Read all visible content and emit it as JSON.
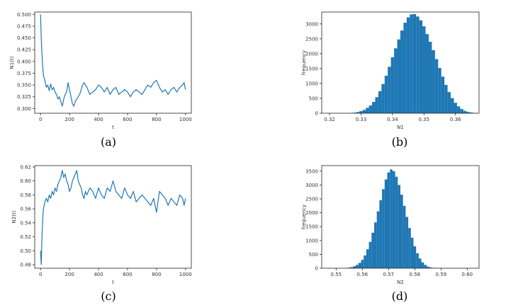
{
  "chart_data": [
    {
      "type": "line",
      "panel": "a",
      "caption": "(a)",
      "xlabel": "t",
      "ylabel": "N1(t)",
      "xlim": [
        -40,
        1040
      ],
      "ylim": [
        0.29,
        0.505
      ],
      "xticks": [
        "0",
        "200",
        "400",
        "600",
        "800",
        "1000"
      ],
      "yticks": [
        "0.300",
        "0.325",
        "0.350",
        "0.375",
        "0.400",
        "0.425",
        "0.450",
        "0.475",
        "0.500"
      ],
      "series": [
        {
          "color": "#1f77b4",
          "x": [
            0,
            5,
            10,
            15,
            20,
            30,
            40,
            50,
            60,
            70,
            80,
            90,
            100,
            110,
            120,
            130,
            140,
            150,
            160,
            170,
            180,
            190,
            200,
            210,
            220,
            230,
            240,
            250,
            260,
            270,
            280,
            290,
            300,
            320,
            340,
            360,
            380,
            400,
            420,
            440,
            460,
            480,
            500,
            520,
            540,
            560,
            580,
            600,
            620,
            640,
            660,
            680,
            700,
            720,
            740,
            760,
            780,
            800,
            820,
            840,
            860,
            880,
            900,
            920,
            940,
            960,
            980,
            990,
            1000
          ],
          "y": [
            0.5,
            0.45,
            0.415,
            0.39,
            0.37,
            0.36,
            0.345,
            0.35,
            0.338,
            0.352,
            0.34,
            0.345,
            0.335,
            0.33,
            0.32,
            0.325,
            0.315,
            0.305,
            0.32,
            0.33,
            0.335,
            0.355,
            0.34,
            0.325,
            0.31,
            0.305,
            0.315,
            0.32,
            0.325,
            0.33,
            0.34,
            0.35,
            0.355,
            0.345,
            0.33,
            0.335,
            0.34,
            0.35,
            0.345,
            0.335,
            0.345,
            0.33,
            0.34,
            0.345,
            0.33,
            0.335,
            0.34,
            0.335,
            0.325,
            0.335,
            0.34,
            0.335,
            0.33,
            0.34,
            0.35,
            0.345,
            0.355,
            0.36,
            0.345,
            0.335,
            0.34,
            0.33,
            0.34,
            0.345,
            0.335,
            0.345,
            0.35,
            0.355,
            0.34
          ]
        }
      ]
    },
    {
      "type": "bar",
      "panel": "b",
      "caption": "(b)",
      "xlabel": "N1",
      "ylabel": "frequency",
      "xlim": [
        0.3175,
        0.3675
      ],
      "ylim": [
        0,
        3400
      ],
      "xticks": [
        "0.32",
        "0.33",
        "0.34",
        "0.35",
        "0.36"
      ],
      "yticks": [
        "0",
        "500",
        "1000",
        "1500",
        "2000",
        "2500",
        "3000"
      ],
      "bins": {
        "start": 0.3265,
        "width": 0.001
      },
      "values": [
        10,
        20,
        40,
        70,
        110,
        180,
        260,
        380,
        540,
        740,
        980,
        1260,
        1560,
        1880,
        2180,
        2480,
        2780,
        3040,
        3220,
        3320,
        3330,
        3250,
        3120,
        2920,
        2660,
        2400,
        2120,
        1820,
        1520,
        1230,
        950,
        710,
        510,
        350,
        230,
        140,
        80,
        45,
        25,
        12
      ]
    },
    {
      "type": "line",
      "panel": "c",
      "caption": "(c)",
      "xlabel": "t",
      "ylabel": "N2(t)",
      "xlim": [
        -40,
        1040
      ],
      "ylim": [
        0.475,
        0.622
      ],
      "xticks": [
        "0",
        "200",
        "400",
        "600",
        "800",
        "1000"
      ],
      "yticks": [
        "0.48",
        "0.50",
        "0.52",
        "0.54",
        "0.56",
        "0.58",
        "0.60",
        "0.62"
      ],
      "series": [
        {
          "color": "#1f77b4",
          "x": [
            0,
            5,
            10,
            15,
            20,
            30,
            40,
            50,
            60,
            70,
            80,
            90,
            100,
            110,
            120,
            130,
            140,
            150,
            160,
            170,
            180,
            190,
            200,
            210,
            220,
            230,
            240,
            250,
            260,
            270,
            280,
            290,
            300,
            310,
            320,
            340,
            360,
            380,
            400,
            420,
            440,
            460,
            480,
            500,
            520,
            540,
            560,
            580,
            600,
            620,
            640,
            660,
            680,
            700,
            720,
            740,
            760,
            780,
            800,
            820,
            840,
            860,
            880,
            900,
            920,
            940,
            960,
            980,
            990,
            1000
          ],
          "y": [
            0.5,
            0.48,
            0.52,
            0.545,
            0.56,
            0.57,
            0.575,
            0.57,
            0.58,
            0.575,
            0.585,
            0.58,
            0.59,
            0.585,
            0.595,
            0.6,
            0.605,
            0.615,
            0.605,
            0.61,
            0.6,
            0.595,
            0.585,
            0.59,
            0.6,
            0.605,
            0.61,
            0.615,
            0.6,
            0.595,
            0.59,
            0.58,
            0.575,
            0.585,
            0.58,
            0.59,
            0.585,
            0.575,
            0.59,
            0.58,
            0.575,
            0.59,
            0.585,
            0.6,
            0.585,
            0.58,
            0.575,
            0.59,
            0.58,
            0.575,
            0.585,
            0.57,
            0.575,
            0.58,
            0.575,
            0.57,
            0.565,
            0.575,
            0.555,
            0.585,
            0.58,
            0.575,
            0.565,
            0.575,
            0.57,
            0.565,
            0.58,
            0.575,
            0.565,
            0.575
          ]
        }
      ]
    },
    {
      "type": "bar",
      "panel": "d",
      "caption": "(d)",
      "xlabel": "N2",
      "ylabel": "frequency",
      "xlim": [
        0.5445,
        0.6045
      ],
      "ylim": [
        0,
        3700
      ],
      "xticks": [
        "0.55",
        "0.56",
        "0.57",
        "0.58",
        "0.59",
        "0.60"
      ],
      "yticks": [
        "0",
        "500",
        "1000",
        "1500",
        "2000",
        "2500",
        "3000",
        "3500"
      ],
      "bins": {
        "start": 0.5525,
        "width": 0.001
      },
      "values": [
        5,
        10,
        20,
        40,
        70,
        120,
        190,
        300,
        460,
        680,
        950,
        1280,
        1650,
        2050,
        2450,
        2850,
        3200,
        3450,
        3560,
        3500,
        3300,
        3000,
        2650,
        2250,
        1850,
        1450,
        1100,
        790,
        540,
        350,
        210,
        120,
        60,
        30,
        15,
        6
      ]
    }
  ]
}
